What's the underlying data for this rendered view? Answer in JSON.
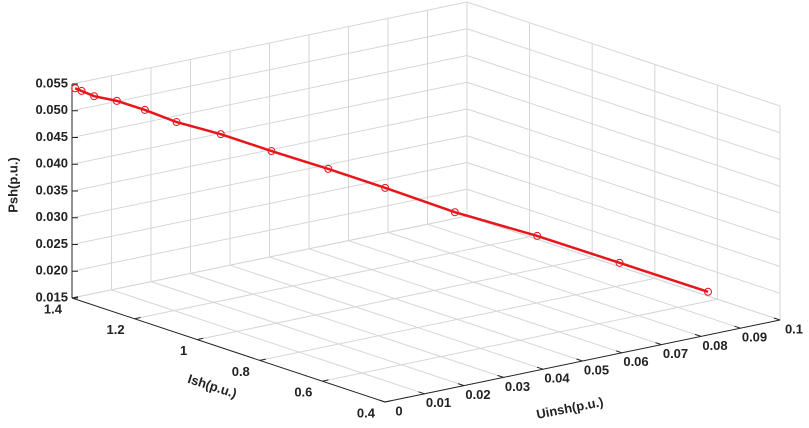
{
  "chart_data": {
    "type": "line3d",
    "xlabel": "Uinsh(p.u.)",
    "ylabel": "Ish(p.u.)",
    "zlabel": "Psh(p.u.)",
    "xlim": [
      0,
      0.1
    ],
    "ylim": [
      0.4,
      1.4
    ],
    "zlim": [
      0.015,
      0.055
    ],
    "xticks": [
      0,
      0.01,
      0.02,
      0.03,
      0.04,
      0.05,
      0.06,
      0.07,
      0.08,
      0.09,
      0.1
    ],
    "yticks": [
      0.4,
      0.6,
      0.8,
      1,
      1.2,
      1.4
    ],
    "zticks": [
      0.015,
      {
        "value": 0.02,
        "label": "0.020"
      },
      0.025,
      {
        "value": 0.03,
        "label": "0.030"
      },
      0.035,
      {
        "value": 0.04,
        "label": "0.040"
      },
      0.045,
      {
        "value": 0.05,
        "label": "0.050"
      },
      0.055
    ],
    "grid": true,
    "series": [
      {
        "color": "#e8151b",
        "x": [
          0,
          0.001,
          0.003,
          0.0066,
          0.011,
          0.016,
          0.023,
          0.031,
          0.04,
          0.049,
          0.06,
          0.073,
          0.086,
          0.1
        ],
        "y": [
          1.39,
          1.382,
          1.367,
          1.34,
          1.306,
          1.268,
          1.215,
          1.154,
          1.086,
          1.018,
          0.934,
          0.835,
          0.736,
          0.63
        ],
        "z": [
          0.0544,
          0.0539,
          0.0529,
          0.052,
          0.0503,
          0.048,
          0.0457,
          0.0425,
          0.0391,
          0.0355,
          0.0309,
          0.0264,
          0.0213,
          0.0158
        ]
      }
    ]
  }
}
